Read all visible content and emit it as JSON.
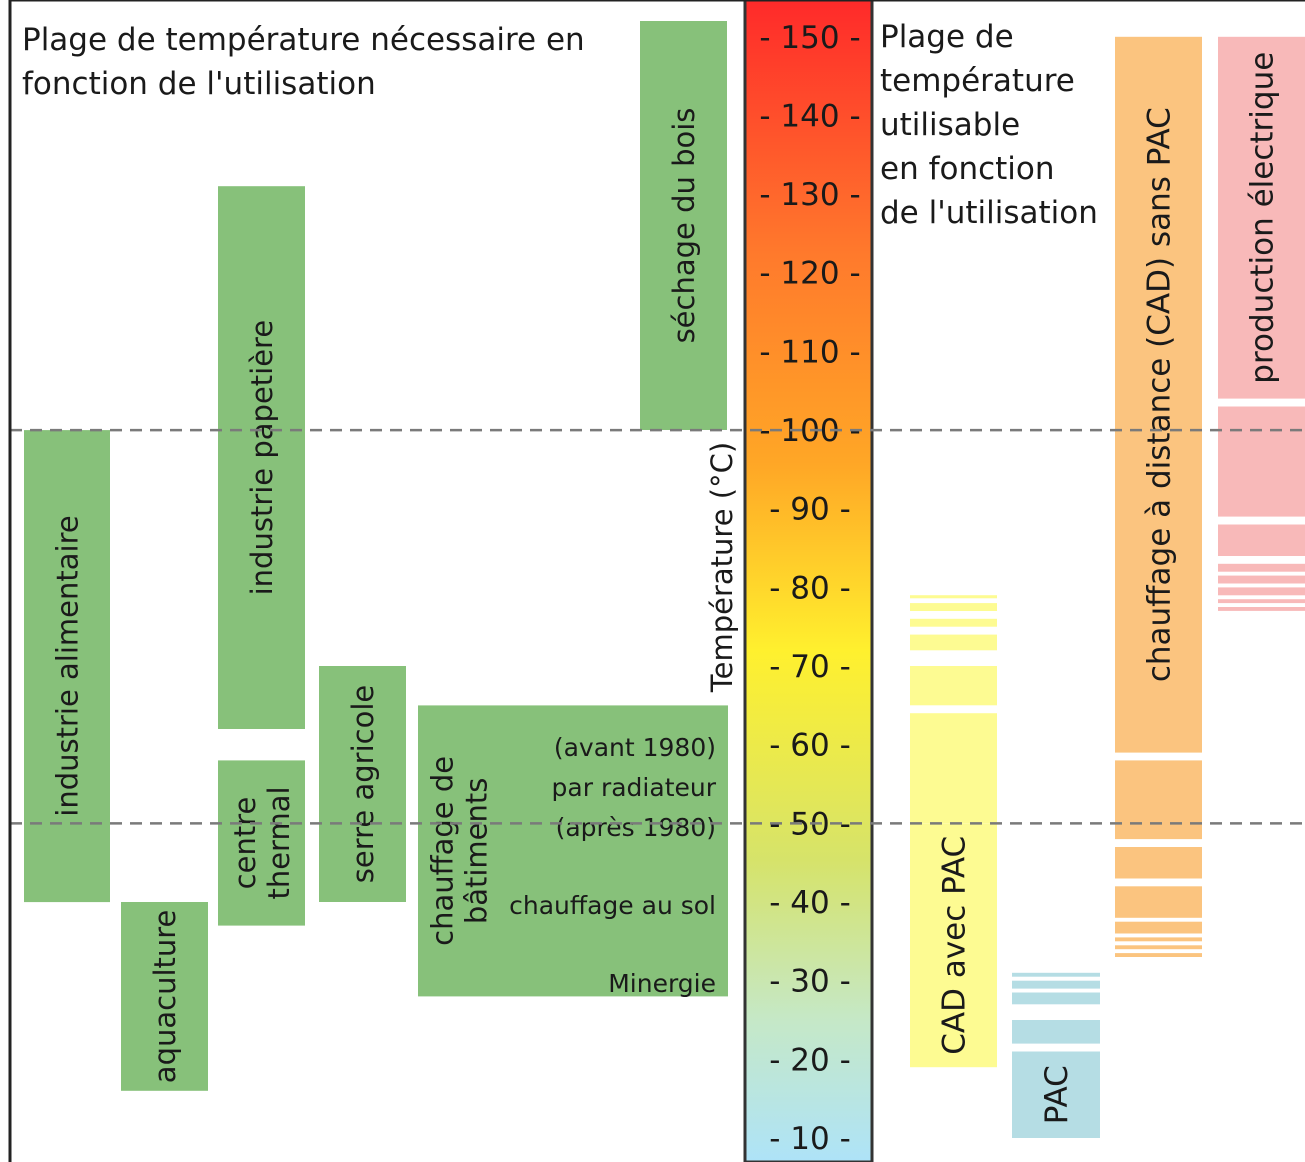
{
  "left_title": [
    "Plage de température nécessaire en",
    "fonction de l'utilisation"
  ],
  "right_title": [
    "Plage de",
    "température",
    "utilisable",
    "en fonction",
    "de l'utilisation"
  ],
  "axis": {
    "label": "Température (°C)",
    "ticks": [
      150,
      140,
      130,
      120,
      110,
      100,
      90,
      80,
      70,
      60,
      50,
      40,
      30,
      20,
      10
    ],
    "scale_top_color": "#ff2a2a",
    "scale_bottom_color": "#aee3f8"
  },
  "reference_lines": [
    100,
    50
  ],
  "colors": {
    "need": "#87c17a",
    "cad_with_pac": "#fdfb92",
    "pac": "#b5dde4",
    "cad_without_pac": "#fbc47f",
    "electric": "#f8b9b9"
  },
  "needs": [
    {
      "name": "industrie alimentaire",
      "label": [
        "industrie alimentaire"
      ],
      "min": 40,
      "max": 100
    },
    {
      "name": "aquaculture",
      "label": [
        "aquaculture"
      ],
      "min": 16,
      "max": 40
    },
    {
      "name": "industrie papetière",
      "label": [
        "industrie papetière"
      ],
      "min": 62,
      "max": 131
    },
    {
      "name": "centre thermal",
      "label": [
        "centre",
        "thermal"
      ],
      "min": 37,
      "max": 58
    },
    {
      "name": "serre agricole",
      "label": [
        "serre agricole"
      ],
      "min": 40,
      "max": 70
    },
    {
      "name": "chauffage de bâtiments",
      "label": [
        "chauffage de",
        "bâtiments"
      ],
      "min": 28,
      "max": 65
    },
    {
      "name": "séchage du bois",
      "label": [
        "séchage du bois"
      ],
      "min": 100,
      "max": 152
    }
  ],
  "building_heating_notes": [
    "(avant 1980)",
    "par radiateur",
    "(après 1980)",
    "chauffage au sol",
    "Minergie"
  ],
  "uses": [
    {
      "name": "CAD avec PAC",
      "label": "CAD avec PAC",
      "min": 19,
      "max": 79
    },
    {
      "name": "PAC",
      "label": "PAC",
      "min": 10,
      "max": 31
    },
    {
      "name": "chauffage à distance (CAD) sans PAC",
      "label": "chauffage à distance (CAD) sans PAC",
      "min": 33,
      "max": 150
    },
    {
      "name": "production électrique",
      "label": "production électrique",
      "min": 77,
      "max": 150
    }
  ]
}
